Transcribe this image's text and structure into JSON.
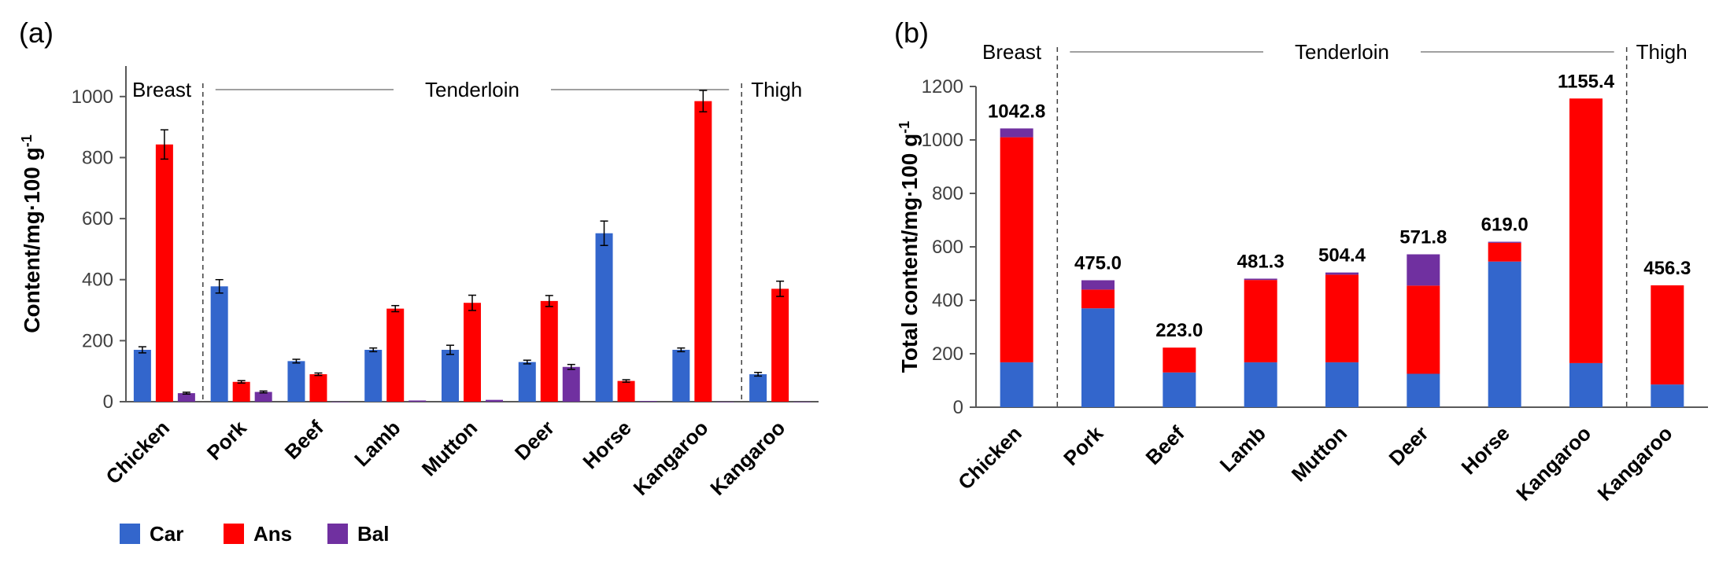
{
  "colors": {
    "car": "#3366cc",
    "ans": "#ff0000",
    "bal": "#7030a0",
    "axis": "#595959",
    "divider": "#404040"
  },
  "legend": [
    {
      "name": "Car",
      "color": "#3366cc"
    },
    {
      "name": "Ans",
      "color": "#ff0000"
    },
    {
      "name": "Bal",
      "color": "#7030a0"
    }
  ],
  "chart_data": [
    {
      "panel_label": "(a)",
      "type": "bar",
      "title": "",
      "xlabel": "",
      "ylabel": "Content/mg·100 g",
      "ylabel_sup": "-1",
      "ylim": [
        0,
        1100
      ],
      "yticks": [
        0,
        200,
        400,
        600,
        800,
        1000
      ],
      "grid": false,
      "categories": [
        "Chicken",
        "Pork",
        "Beef",
        "Lamb",
        "Mutton",
        "Deer",
        "Horse",
        "Kangaroo",
        "Kangaroo"
      ],
      "groups": [
        {
          "label": "Breast",
          "categories": [
            0
          ]
        },
        {
          "label": "Tenderloin",
          "categories": [
            1,
            2,
            3,
            4,
            5,
            6,
            7
          ]
        },
        {
          "label": "Thigh",
          "categories": [
            8
          ]
        }
      ],
      "series": [
        {
          "name": "Car",
          "values": [
            170,
            378,
            133,
            170,
            170,
            130,
            552,
            170,
            90
          ],
          "errors": [
            10,
            22,
            6,
            6,
            15,
            6,
            40,
            6,
            6
          ]
        },
        {
          "name": "Ans",
          "values": [
            843,
            65,
            90,
            305,
            324,
            330,
            68,
            985,
            370
          ],
          "errors": [
            48,
            4,
            4,
            10,
            25,
            18,
            4,
            35,
            25
          ]
        },
        {
          "name": "Bal",
          "values": [
            28,
            32,
            0,
            4,
            6,
            114,
            2,
            0,
            0
          ],
          "errors": [
            3,
            3,
            0,
            0,
            0,
            8,
            0,
            0,
            0
          ]
        }
      ],
      "legend_position": "bottom-left"
    },
    {
      "panel_label": "(b)",
      "type": "bar",
      "stacked": true,
      "title": "",
      "xlabel": "",
      "ylabel": "Total content/mg·100 g",
      "ylabel_sup": "-1",
      "ylim": [
        0,
        1200
      ],
      "yticks": [
        0,
        200,
        400,
        600,
        800,
        1000,
        1200
      ],
      "grid": false,
      "categories": [
        "Chicken",
        "Pork",
        "Beef",
        "Lamb",
        "Mutton",
        "Deer",
        "Horse",
        "Kangaroo",
        "Kangaroo"
      ],
      "groups": [
        {
          "label": "Breast",
          "categories": [
            0
          ]
        },
        {
          "label": "Tenderloin",
          "categories": [
            1,
            2,
            3,
            4,
            5,
            6,
            7
          ]
        },
        {
          "label": "Thigh",
          "categories": [
            8
          ]
        }
      ],
      "series": [
        {
          "name": "Car",
          "values": [
            168,
            370,
            130,
            168,
            168,
            125,
            545,
            165,
            85
          ]
        },
        {
          "name": "Ans",
          "values": [
            842,
            70,
            93,
            308,
            328,
            330,
            70,
            990,
            371
          ]
        },
        {
          "name": "Bal",
          "values": [
            33,
            35,
            0,
            5,
            8,
            117,
            4,
            0,
            0
          ]
        }
      ],
      "total_labels": [
        "1042.8",
        "475.0",
        "223.0",
        "481.3",
        "504.4",
        "571.8",
        "619.0",
        "1155.4",
        "456.3"
      ]
    }
  ]
}
